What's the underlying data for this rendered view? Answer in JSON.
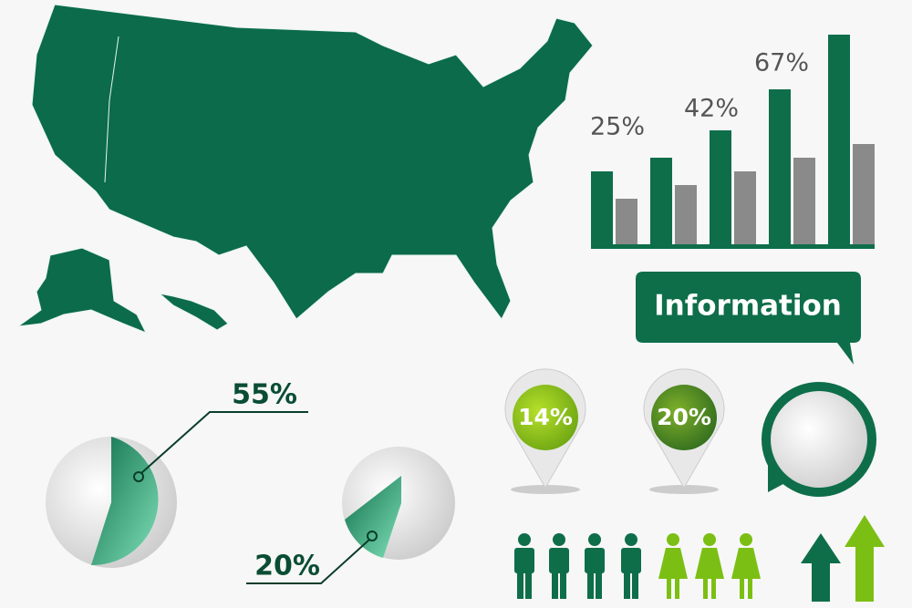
{
  "bar_chart": {
    "labels": [
      "25%",
      "42%",
      "67%"
    ]
  },
  "callout": {
    "text": "Information"
  },
  "pies": [
    {
      "label": "55%"
    },
    {
      "label": "20%"
    }
  ],
  "pins": [
    {
      "label": "14%"
    },
    {
      "label": "20%"
    }
  ]
}
